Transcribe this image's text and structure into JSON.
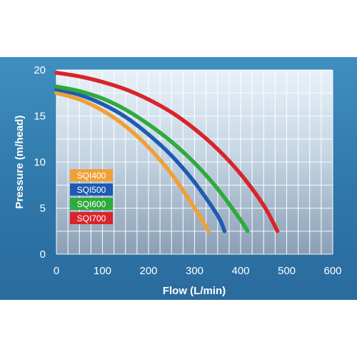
{
  "chart_data": {
    "type": "line",
    "xlabel": "Flow (L/min)",
    "ylabel": "Pressure (m/head)",
    "xlim": [
      0,
      600
    ],
    "ylim": [
      0,
      20
    ],
    "xticks": [
      0,
      100,
      200,
      300,
      400,
      500,
      600
    ],
    "yticks": [
      0,
      5,
      10,
      15,
      20
    ],
    "grid": true,
    "legend": "left",
    "series": [
      {
        "name": "SQI400",
        "color": "#f0a035",
        "x": [
          0,
          50,
          100,
          150,
          200,
          250,
          300,
          330
        ],
        "y": [
          17.5,
          16.8,
          15.6,
          13.9,
          11.6,
          8.7,
          5.0,
          2.5
        ]
      },
      {
        "name": "SQI500",
        "color": "#1f5bb0",
        "x": [
          0,
          50,
          100,
          150,
          200,
          250,
          300,
          350,
          365
        ],
        "y": [
          17.9,
          17.3,
          16.3,
          14.9,
          13.0,
          10.7,
          7.8,
          4.2,
          2.5
        ]
      },
      {
        "name": "SQI600",
        "color": "#2faa3c",
        "x": [
          0,
          50,
          100,
          150,
          200,
          250,
          300,
          350,
          400,
          415
        ],
        "y": [
          18.2,
          17.7,
          16.9,
          15.7,
          14.1,
          12.2,
          9.9,
          7.1,
          3.7,
          2.5
        ]
      },
      {
        "name": "SQI700",
        "color": "#d9242b",
        "x": [
          0,
          50,
          100,
          150,
          200,
          250,
          300,
          350,
          400,
          450,
          480
        ],
        "y": [
          19.7,
          19.3,
          18.7,
          17.9,
          16.8,
          15.4,
          13.6,
          11.4,
          8.7,
          5.3,
          2.5
        ]
      }
    ]
  }
}
